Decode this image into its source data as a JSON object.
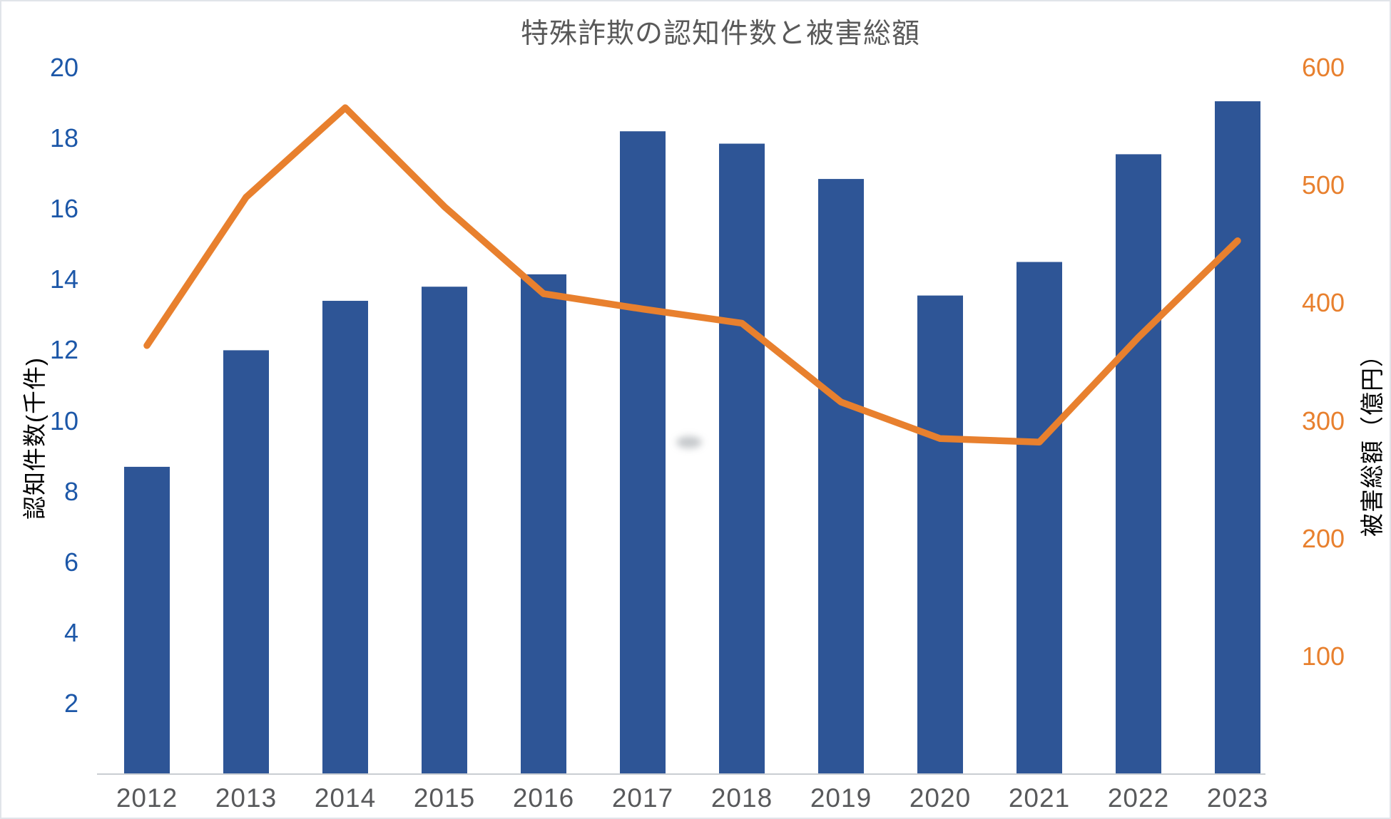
{
  "chart_data": {
    "type": "bar",
    "subtype": "combo-bar-line-dual-axis",
    "title": "特殊詐欺の認知件数と被害総額",
    "categories": [
      "2012",
      "2013",
      "2014",
      "2015",
      "2016",
      "2017",
      "2018",
      "2019",
      "2020",
      "2021",
      "2022",
      "2023"
    ],
    "series": [
      {
        "name": "認知件数",
        "render": "bar",
        "axis": "left",
        "unit": "千件",
        "values": [
          8.7,
          12.0,
          13.4,
          13.8,
          14.15,
          18.2,
          17.85,
          16.85,
          13.55,
          14.5,
          17.55,
          19.05
        ],
        "color": "#2E5596"
      },
      {
        "name": "被害総額",
        "render": "line",
        "axis": "right",
        "unit": "億円",
        "values": [
          364,
          490,
          566,
          482,
          408,
          395,
          383,
          316,
          285,
          282,
          371,
          453
        ],
        "color": "#E8802E"
      }
    ],
    "left_axis": {
      "label": "認知件数(千件)",
      "min": 0,
      "max": 20,
      "tick_step": 2,
      "ticks": [
        20,
        18,
        16,
        14,
        12,
        10,
        8,
        6,
        4,
        2
      ],
      "color": "#1C57A8"
    },
    "right_axis": {
      "label": "被害総額（億円）",
      "min": 0,
      "max": 600,
      "tick_step": 100,
      "ticks": [
        600,
        500,
        400,
        300,
        200,
        100
      ],
      "color": "#E8802E"
    },
    "x_axis": {
      "labels": [
        "2012",
        "2013",
        "2014",
        "2015",
        "2016",
        "2017",
        "2018",
        "2019",
        "2020",
        "2021",
        "2022",
        "2023"
      ],
      "color": "#58595b"
    },
    "title_color": "#595959",
    "baseline_color": "#c9cdd2",
    "grid": "off",
    "legend": "none"
  }
}
